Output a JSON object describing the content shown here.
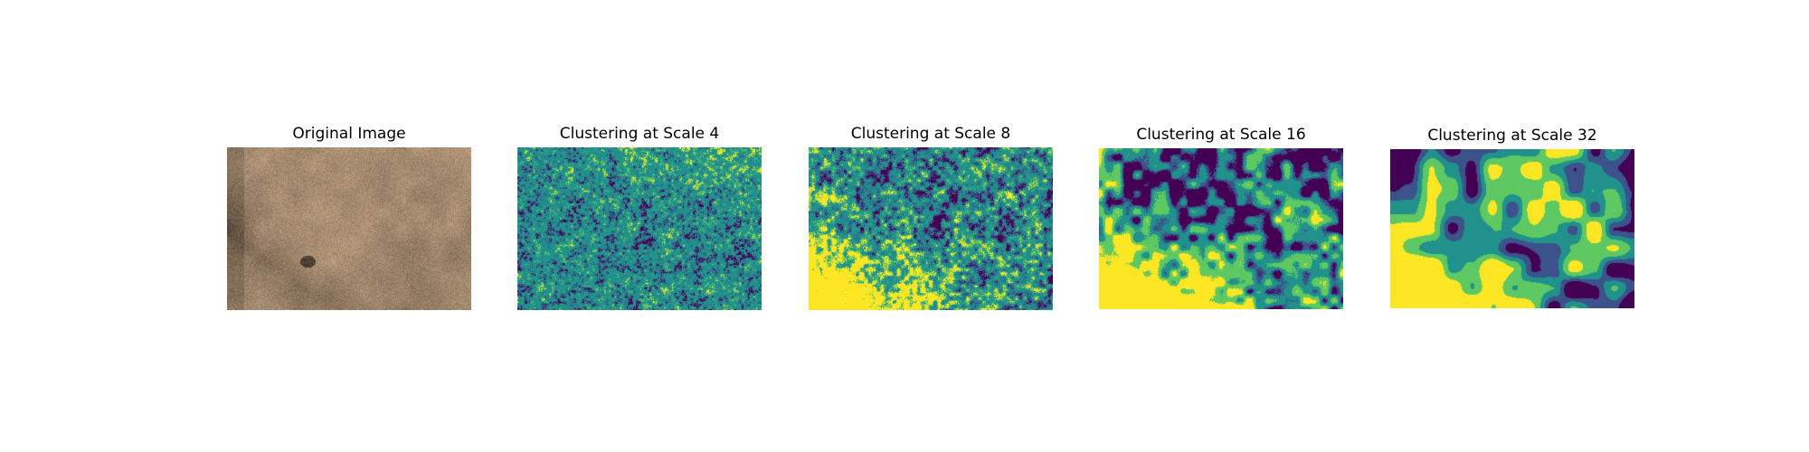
{
  "figure": {
    "panels": [
      {
        "title": "Original Image",
        "kind": "photo",
        "description_colors": [
          "#b89a7a",
          "#a88968",
          "#7d6650",
          "#cbb394",
          "#5a4a3c"
        ]
      },
      {
        "title": "Clustering at Scale 4",
        "kind": "cluster",
        "scale": 4
      },
      {
        "title": "Clustering at Scale 8",
        "kind": "cluster",
        "scale": 8
      },
      {
        "title": "Clustering at Scale 16",
        "kind": "cluster",
        "scale": 16
      },
      {
        "title": "Clustering at Scale 32",
        "kind": "cluster",
        "scale": 32
      }
    ],
    "colormap": [
      "#440154",
      "#3b528b",
      "#21918c",
      "#5ec962",
      "#fde725"
    ]
  }
}
